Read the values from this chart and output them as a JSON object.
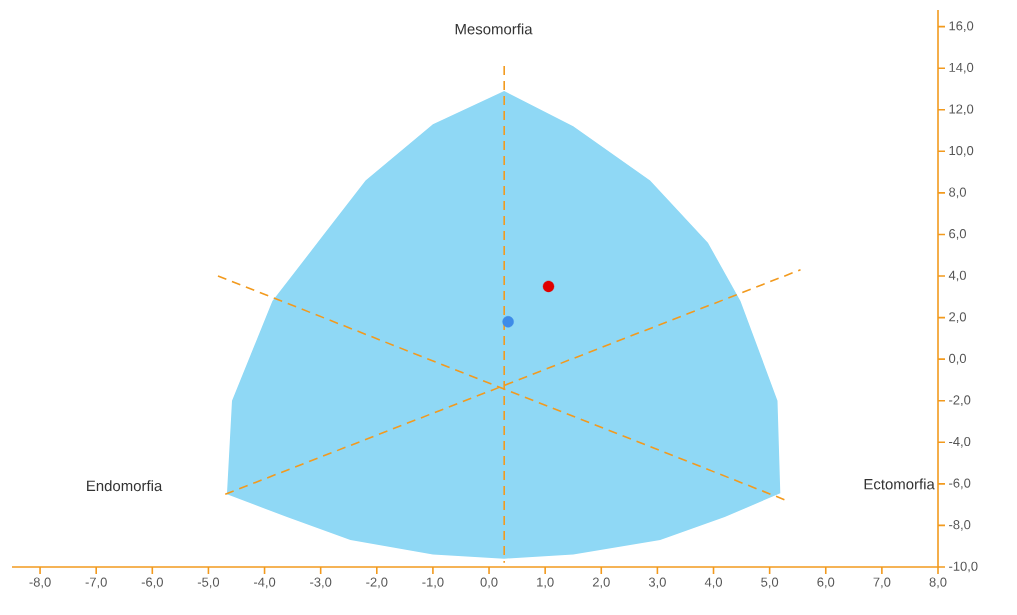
{
  "chart_data": {
    "type": "scatter",
    "annotations": [
      "Mesomorfia",
      "Endomorfia",
      "Ectomorfia"
    ],
    "xlim": [
      -8.5,
      8
    ],
    "ylim": [
      -10,
      16.8
    ],
    "xticks": [
      {
        "value": -8,
        "label": "-8,0"
      },
      {
        "value": -7,
        "label": "-7,0"
      },
      {
        "value": -6,
        "label": "-6,0"
      },
      {
        "value": -5,
        "label": "-5,0"
      },
      {
        "value": -4,
        "label": "-4,0"
      },
      {
        "value": -3,
        "label": "-3,0"
      },
      {
        "value": -2,
        "label": "-2,0"
      },
      {
        "value": -1,
        "label": "-1,0"
      },
      {
        "value": 0,
        "label": "0,0"
      },
      {
        "value": 1,
        "label": "1,0"
      },
      {
        "value": 2,
        "label": "2,0"
      },
      {
        "value": 3,
        "label": "3,0"
      },
      {
        "value": 4,
        "label": "4,0"
      },
      {
        "value": 5,
        "label": "5,0"
      },
      {
        "value": 6,
        "label": "6,0"
      },
      {
        "value": 7,
        "label": "7,0"
      },
      {
        "value": 8,
        "label": "8,0"
      }
    ],
    "yticks": [
      {
        "value": -10,
        "label": "-10,0"
      },
      {
        "value": -8,
        "label": "-8,0"
      },
      {
        "value": -6,
        "label": "-6,0"
      },
      {
        "value": -4,
        "label": "-4,0"
      },
      {
        "value": -2,
        "label": "-2,0"
      },
      {
        "value": 0,
        "label": "0,0"
      },
      {
        "value": 2,
        "label": "2,0"
      },
      {
        "value": 4,
        "label": "4,0"
      },
      {
        "value": 6,
        "label": "6,0"
      },
      {
        "value": 8,
        "label": "8,0"
      },
      {
        "value": 10,
        "label": "10,0"
      },
      {
        "value": 12,
        "label": "12,0"
      },
      {
        "value": 14,
        "label": "14,0"
      },
      {
        "value": 16,
        "label": "16,0"
      }
    ],
    "grid": false,
    "series": [
      {
        "type": "area",
        "color": "#8fd8f5",
        "marker": "none",
        "x": [
          0.27,
          1.5,
          2.87,
          3.9,
          4.48,
          5.14,
          5.19,
          4.2,
          3.05,
          1.5,
          0.27,
          -1.0,
          -2.47,
          -3.6,
          -4.67,
          -4.58,
          -3.86,
          -3.0,
          -2.2,
          -1.0
        ],
        "values": [
          12.9,
          11.2,
          8.6,
          5.6,
          2.8,
          -2.0,
          -6.45,
          -7.6,
          -8.7,
          -9.4,
          -9.6,
          -9.4,
          -8.7,
          -7.6,
          -6.5,
          -2.0,
          2.8,
          5.8,
          8.6,
          11.3
        ]
      },
      {
        "type": "line",
        "color": "#f29a1e",
        "line_style": "dashed",
        "marker": "none",
        "x": [
          0.27,
          0.27
        ],
        "values": [
          14.1,
          -9.8
        ]
      },
      {
        "type": "line",
        "color": "#f29a1e",
        "line_style": "dashed",
        "marker": "none",
        "x": [
          -4.83,
          5.3
        ],
        "values": [
          4.0,
          -6.8
        ]
      },
      {
        "type": "line",
        "color": "#f29a1e",
        "line_style": "dashed",
        "marker": "none",
        "x": [
          -4.7,
          5.55
        ],
        "values": [
          -6.5,
          4.3
        ]
      },
      {
        "color": "#3d8be8",
        "marker": "circle",
        "x": [
          0.34
        ],
        "values": [
          1.8
        ]
      },
      {
        "color": "#e00000",
        "marker": "circle",
        "x": [
          1.06
        ],
        "values": [
          3.5
        ]
      }
    ]
  }
}
